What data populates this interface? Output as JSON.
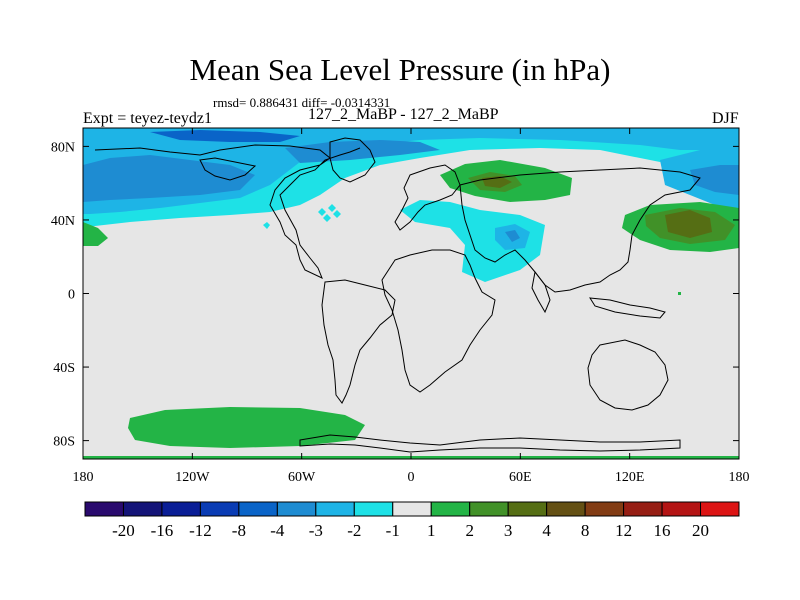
{
  "map": {
    "title": "Mean Sea Level Pressure (in hPa)",
    "stats": "rmsd= 0.886431 diff= -0.0314331",
    "expt": "Expt = teyez-teydz1",
    "subtitle": "127_2_MaBP - 127_2_MaBP",
    "season": "DJF",
    "lon_ticks": [
      "180",
      "120W",
      "60W",
      "0",
      "60E",
      "120E",
      "180"
    ],
    "lat_ticks": [
      "80N",
      "40N",
      "0",
      "40S",
      "80S"
    ],
    "lon_range": [
      -180,
      180
    ],
    "lat_range": [
      -90,
      90
    ]
  },
  "colorbar": {
    "labels": [
      "-20",
      "-16",
      "-12",
      "-8",
      "-4",
      "-3",
      "-2",
      "-1",
      "1",
      "2",
      "3",
      "4",
      "8",
      "12",
      "16",
      "20"
    ],
    "colors": [
      "#2a0a6e",
      "#141478",
      "#0a1e96",
      "#0a3cb4",
      "#0a64c8",
      "#1e8cd2",
      "#1eb4e6",
      "#1ee1e6",
      "#e6e6e6",
      "#23b446",
      "#419128",
      "#556e14",
      "#645014",
      "#823c14",
      "#961e14",
      "#b41414",
      "#dc1414"
    ]
  },
  "colors": {
    "land_outline": "#000000",
    "neutral": "#e6e6e6"
  }
}
